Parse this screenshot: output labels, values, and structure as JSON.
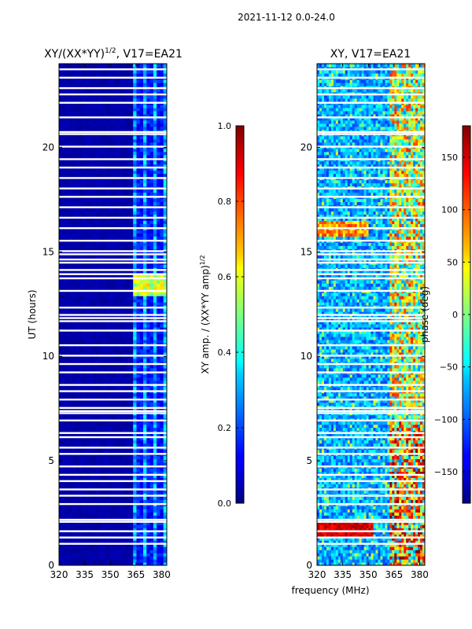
{
  "chart_data": {
    "suptitle": "2021-11-12 0.0-24.0",
    "xlabel": "frequency (MHz)",
    "panels": [
      {
        "type": "heatmap",
        "title_base": "XY/(XX*YY)",
        "title_exp": "1/2",
        "title_suffix": ", V17=EA21",
        "ylabel": "UT (hours)",
        "xlim": [
          320,
          383
        ],
        "ylim": [
          0,
          24
        ],
        "xticks": [
          320,
          335,
          350,
          365,
          380
        ],
        "yticks": [
          0,
          5,
          10,
          15,
          20
        ],
        "colorbar": {
          "label_base": "XY amp. / (XX*YY amp)",
          "label_exp": "1/2",
          "range": [
            0.0,
            1.0
          ],
          "ticks": [
            "0.0",
            "0.2",
            "0.4",
            "0.6",
            "0.8",
            "1.0"
          ],
          "tick_values": [
            0.0,
            0.2,
            0.4,
            0.6,
            0.8,
            1.0
          ],
          "colormap": "jet"
        }
      },
      {
        "type": "heatmap",
        "title": "XY, V17=EA21",
        "xlim": [
          320,
          383
        ],
        "ylim": [
          0,
          24
        ],
        "xticks": [
          320,
          335,
          350,
          365,
          380
        ],
        "yticks": [
          0,
          5,
          10,
          15,
          20
        ],
        "colorbar": {
          "label": "phase (deg)",
          "range": [
            -180,
            180
          ],
          "ticks": [
            "−150",
            "−100",
            "−50",
            "0",
            "50",
            "100",
            "150"
          ],
          "tick_values": [
            -150,
            -100,
            -50,
            0,
            50,
            100,
            150
          ],
          "colormap": "jet"
        }
      }
    ],
    "flagged_ut_hours": [
      1.0,
      1.3,
      1.6,
      2.05,
      2.15,
      2.9,
      3.3,
      3.6,
      4.0,
      4.3,
      4.7,
      5.3,
      5.6,
      6.1,
      6.3,
      6.9,
      7.25,
      7.35,
      7.5,
      7.9,
      8.3,
      8.6,
      9.2,
      9.6,
      10.0,
      10.5,
      11.2,
      11.65,
      11.8,
      11.95,
      12.3,
      13.1,
      13.7,
      13.9,
      14.1,
      14.45,
      14.6,
      14.85,
      15.0,
      15.5,
      16.1,
      16.6,
      17.1,
      17.6,
      18.0,
      18.5,
      19.0,
      19.4,
      20.0,
      20.6,
      20.7,
      21.4,
      22.1,
      22.5,
      22.8,
      23.3,
      23.7
    ]
  }
}
